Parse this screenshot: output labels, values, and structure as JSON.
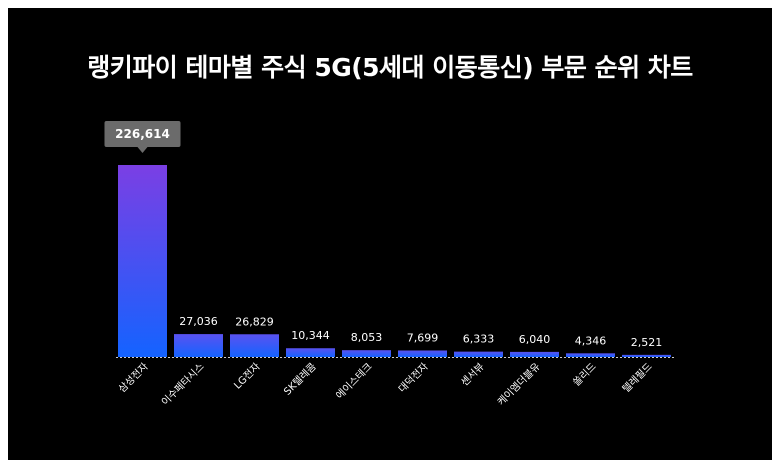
{
  "chart_data": {
    "type": "bar",
    "title": "랭키파이 테마별 주식 5G(5세대 이동통신) 부문 순위 차트",
    "categories": [
      "삼성전자",
      "이수페타시스",
      "LG전자",
      "SK텔레콤",
      "에이스테크",
      "대덕전자",
      "센서뷰",
      "케이엠더블유",
      "쏠리드",
      "텔레필드"
    ],
    "values": [
      226614,
      27036,
      26829,
      10344,
      8053,
      7699,
      6333,
      6040,
      4346,
      2521
    ],
    "value_labels": [
      "226,614",
      "27,036",
      "26,829",
      "10,344",
      "8,053",
      "7,699",
      "6,333",
      "6,040",
      "4,346",
      "2,521"
    ],
    "highlight_index": 0,
    "ylim": [
      0,
      226614
    ],
    "grid": false,
    "colors": {
      "bar_top_highlight": "#7b3fe4",
      "bar_bottom": "#1463ff",
      "bar_top": "#5a52f0",
      "background": "#000000",
      "tooltip": "#6b6b6b"
    }
  }
}
